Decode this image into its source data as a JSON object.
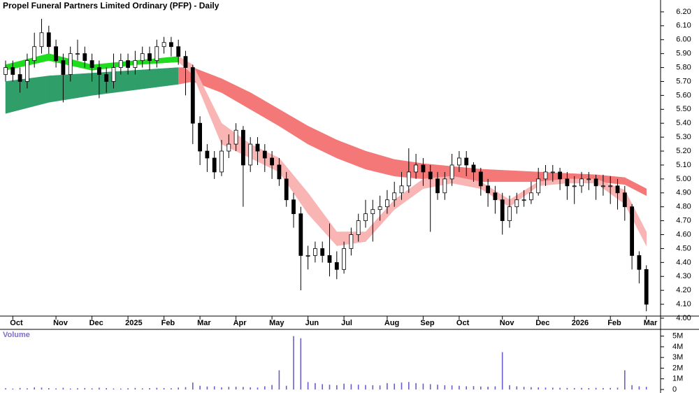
{
  "chart_data": [
    {
      "type": "candlestick",
      "title": "Propel Funeral Partners Limited Ordinary (PFP) - Daily",
      "categories": [
        null,
        "Oct",
        null,
        null,
        null,
        null,
        null,
        "Nov",
        null,
        null,
        null,
        null,
        "Dec",
        null,
        null,
        null,
        null,
        "2025",
        null,
        null,
        null,
        null,
        "Feb",
        null,
        null,
        null,
        null,
        "Mar",
        null,
        null,
        null,
        null,
        "Apr",
        null,
        null,
        null,
        null,
        "May",
        null,
        null,
        null,
        null,
        "Jun",
        null,
        null,
        null,
        null,
        "Jul",
        null,
        null,
        null,
        null,
        null,
        "Aug",
        null,
        null,
        null,
        null,
        "Sep",
        null,
        null,
        null,
        null,
        "Oct",
        null,
        null,
        null,
        null,
        null,
        "Nov",
        null,
        null,
        null,
        null,
        "Dec",
        null,
        null,
        null,
        null,
        "2026",
        null,
        null,
        null,
        null,
        "Feb",
        null,
        null,
        null,
        null,
        "Mar"
      ],
      "open": [
        5.75,
        5.8,
        5.75,
        5.7,
        5.85,
        5.95,
        6.05,
        5.95,
        5.85,
        5.75,
        5.9,
        5.9,
        5.85,
        5.8,
        5.75,
        5.7,
        5.8,
        5.85,
        5.8,
        5.85,
        5.9,
        5.85,
        5.95,
        5.98,
        5.95,
        5.88,
        5.8,
        5.4,
        5.2,
        5.15,
        5.05,
        5.2,
        5.25,
        5.35,
        5.1,
        5.25,
        5.2,
        5.15,
        5.1,
        5.0,
        4.85,
        4.75,
        4.45,
        4.45,
        4.5,
        4.45,
        4.4,
        4.35,
        4.5,
        4.6,
        4.7,
        4.75,
        4.78,
        4.8,
        4.85,
        4.9,
        4.95,
        5.05,
        5.1,
        5.05,
        5.0,
        4.9,
        5.0,
        5.1,
        5.15,
        5.1,
        5.05,
        4.95,
        4.9,
        4.85,
        4.7,
        4.8,
        4.85,
        4.85,
        4.9,
        5.0,
        5.05,
        5.05,
        5.0,
        4.95,
        4.95,
        5.0,
        5.0,
        4.95,
        4.95,
        4.95,
        4.9,
        4.8,
        4.45,
        4.35
      ],
      "high": [
        5.85,
        5.85,
        5.8,
        5.9,
        6.05,
        6.15,
        6.1,
        6.0,
        5.9,
        5.95,
        6.0,
        5.95,
        5.9,
        5.85,
        5.8,
        5.9,
        5.9,
        5.9,
        5.92,
        5.95,
        5.95,
        6.0,
        6.02,
        6.02,
        6.0,
        5.92,
        5.82,
        5.45,
        5.25,
        5.2,
        5.28,
        5.32,
        5.4,
        5.38,
        5.3,
        5.3,
        5.25,
        5.2,
        5.15,
        5.05,
        4.9,
        4.8,
        4.52,
        4.55,
        4.55,
        4.68,
        4.48,
        4.55,
        4.65,
        4.75,
        4.85,
        4.85,
        4.88,
        4.92,
        4.98,
        5.05,
        5.22,
        5.18,
        5.15,
        5.1,
        5.05,
        5.05,
        5.18,
        5.2,
        5.2,
        5.12,
        5.08,
        5.0,
        4.95,
        4.9,
        4.88,
        4.9,
        4.92,
        4.98,
        5.08,
        5.1,
        5.1,
        5.08,
        5.05,
        5.02,
        5.05,
        5.05,
        5.03,
        5.03,
        5.02,
        5.0,
        4.95,
        4.82,
        4.48,
        4.38
      ],
      "low": [
        5.7,
        5.7,
        5.62,
        5.65,
        5.8,
        5.9,
        5.9,
        5.8,
        5.55,
        5.7,
        5.85,
        5.8,
        5.7,
        5.58,
        5.62,
        5.65,
        5.75,
        5.75,
        5.75,
        5.8,
        5.78,
        5.8,
        5.9,
        5.88,
        5.82,
        5.6,
        5.25,
        5.1,
        5.05,
        5.0,
        5.02,
        5.15,
        5.2,
        4.8,
        5.05,
        5.1,
        5.05,
        5.0,
        4.95,
        4.8,
        4.65,
        4.2,
        4.35,
        4.4,
        4.4,
        4.3,
        4.28,
        4.32,
        4.45,
        4.55,
        4.65,
        4.55,
        4.7,
        4.75,
        4.8,
        4.85,
        4.9,
        5.0,
        4.95,
        4.62,
        4.85,
        4.85,
        4.95,
        5.05,
        5.02,
        4.98,
        4.88,
        4.8,
        4.75,
        4.6,
        4.65,
        4.75,
        4.8,
        4.82,
        4.88,
        4.95,
        4.98,
        4.92,
        4.85,
        4.82,
        4.9,
        4.92,
        4.85,
        4.88,
        4.82,
        4.78,
        4.7,
        4.35,
        4.25,
        4.05
      ],
      "close": [
        5.8,
        5.75,
        5.7,
        5.85,
        5.95,
        6.05,
        5.95,
        5.85,
        5.75,
        5.9,
        5.9,
        5.85,
        5.8,
        5.75,
        5.7,
        5.8,
        5.85,
        5.8,
        5.85,
        5.9,
        5.85,
        5.95,
        5.98,
        5.95,
        5.88,
        5.8,
        5.4,
        5.2,
        5.15,
        5.05,
        5.2,
        5.25,
        5.35,
        5.1,
        5.25,
        5.2,
        5.15,
        5.1,
        5.0,
        4.85,
        4.75,
        4.45,
        4.45,
        4.5,
        4.45,
        4.4,
        4.35,
        4.5,
        4.6,
        4.7,
        4.75,
        4.78,
        4.8,
        4.85,
        4.9,
        4.95,
        5.05,
        5.1,
        5.05,
        5.0,
        4.9,
        5.0,
        5.1,
        5.15,
        5.1,
        5.05,
        4.95,
        4.9,
        4.85,
        4.7,
        4.8,
        4.85,
        4.85,
        4.9,
        5.0,
        5.05,
        5.05,
        5.0,
        4.95,
        4.95,
        5.0,
        5.0,
        4.95,
        4.95,
        4.95,
        4.9,
        4.8,
        4.45,
        4.35,
        4.1
      ],
      "bands": {
        "x": [
          0,
          6,
          12,
          18,
          24,
          26,
          30,
          34,
          38,
          42,
          46,
          50,
          54,
          58,
          62,
          66,
          70,
          74,
          78,
          82,
          86,
          89
        ],
        "slow_upper": [
          5.7,
          5.74,
          5.76,
          5.78,
          5.8,
          5.8,
          5.72,
          5.62,
          5.5,
          5.38,
          5.28,
          5.2,
          5.14,
          5.11,
          5.09,
          5.07,
          5.06,
          5.05,
          5.04,
          5.03,
          5.01,
          4.93
        ],
        "slow_lower": [
          5.47,
          5.55,
          5.6,
          5.64,
          5.68,
          5.7,
          5.62,
          5.5,
          5.38,
          5.25,
          5.15,
          5.07,
          5.02,
          5.0,
          4.99,
          4.98,
          4.98,
          4.98,
          4.98,
          4.98,
          4.96,
          4.88
        ],
        "fast_upper": [
          5.82,
          5.9,
          5.82,
          5.85,
          5.88,
          5.82,
          5.4,
          5.25,
          5.15,
          4.9,
          4.62,
          4.62,
          4.85,
          5.0,
          5.02,
          4.98,
          4.85,
          4.98,
          5.0,
          5.0,
          4.92,
          4.62
        ],
        "fast_lower": [
          5.78,
          5.85,
          5.78,
          5.82,
          5.84,
          5.75,
          5.25,
          5.15,
          5.05,
          4.75,
          4.52,
          4.55,
          4.78,
          4.93,
          4.97,
          4.93,
          4.8,
          4.95,
          4.97,
          4.97,
          4.82,
          4.52
        ]
      },
      "colors": {
        "slow_up": "#2f9e68",
        "slow_down": "#f47878",
        "fast_up": "#1fdc1f",
        "fast_down": "#f9b4b4",
        "candle": "#000000"
      },
      "ylim": [
        4.0,
        6.285
      ],
      "yticks": [
        {
          "value": 4.0,
          "label": "4.00"
        },
        {
          "value": 4.1,
          "label": "4.10"
        },
        {
          "value": 4.2,
          "label": "4.20"
        },
        {
          "value": 4.3,
          "label": "4.30"
        },
        {
          "value": 4.4,
          "label": "4.40"
        },
        {
          "value": 4.5,
          "label": "4.50"
        },
        {
          "value": 4.6,
          "label": "4.60"
        },
        {
          "value": 4.7,
          "label": "4.70"
        },
        {
          "value": 4.8,
          "label": "4.80"
        },
        {
          "value": 4.9,
          "label": "4.90"
        },
        {
          "value": 5.0,
          "label": "5.00"
        },
        {
          "value": 5.1,
          "label": "5.10"
        },
        {
          "value": 5.2,
          "label": "5.20"
        },
        {
          "value": 5.3,
          "label": "5.30"
        },
        {
          "value": 5.4,
          "label": "5.40"
        },
        {
          "value": 5.5,
          "label": "5.50"
        },
        {
          "value": 5.6,
          "label": "5.60"
        },
        {
          "value": 5.7,
          "label": "5.70"
        },
        {
          "value": 5.8,
          "label": "5.80"
        },
        {
          "value": 5.9,
          "label": "5.90"
        },
        {
          "value": 6.0,
          "label": "6.00"
        },
        {
          "value": 6.1,
          "label": "6.10"
        },
        {
          "value": 6.2,
          "label": "6.20"
        }
      ]
    },
    {
      "type": "bar",
      "title": "Volume",
      "values": [
        120000,
        90000,
        150000,
        110000,
        200000,
        180000,
        130000,
        100000,
        160000,
        90000,
        120000,
        140000,
        110000,
        170000,
        130000,
        100000,
        90000,
        120000,
        150000,
        110000,
        130000,
        160000,
        140000,
        120000,
        180000,
        220000,
        650000,
        350000,
        280000,
        300000,
        200000,
        250000,
        260000,
        240000,
        200000,
        180000,
        300000,
        420000,
        1800000,
        350000,
        5000000,
        4800000,
        700000,
        600000,
        500000,
        450000,
        400000,
        550000,
        500000,
        450000,
        420000,
        400000,
        380000,
        600000,
        550000,
        650000,
        700000,
        600000,
        550000,
        500000,
        450000,
        400000,
        380000,
        350000,
        300000,
        320000,
        280000,
        260000,
        300000,
        3500000,
        400000,
        300000,
        250000,
        220000,
        200000,
        180000,
        170000,
        160000,
        150000,
        140000,
        150000,
        130000,
        160000,
        140000,
        150000,
        170000,
        1800000,
        400000,
        300000,
        250000
      ],
      "color": "#6a5fc8",
      "ylim": [
        0,
        5500000
      ],
      "yticks": [
        0,
        {
          "value": 1000000,
          "label": "1M"
        },
        {
          "value": 2000000,
          "label": "2M"
        },
        {
          "value": 3000000,
          "label": "3M"
        },
        {
          "value": 4000000,
          "label": "4M"
        },
        {
          "value": 5000000,
          "label": "5M"
        }
      ]
    }
  ]
}
